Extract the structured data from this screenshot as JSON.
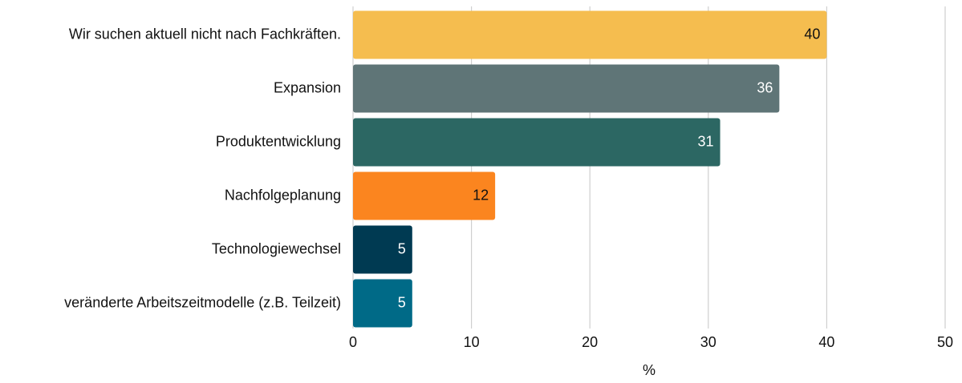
{
  "chart_data": {
    "type": "barh",
    "categories": [
      "Wir suchen aktuell nicht nach Fachkräften.",
      "Expansion",
      "Produktentwicklung",
      "Nachfolgeplanung",
      "Technologiewechsel",
      "veränderte Arbeitszeitmodelle (z.B. Teilzeit)"
    ],
    "values": [
      40,
      36,
      31,
      12,
      5,
      5
    ],
    "colors": [
      "#f5bd4f",
      "#5f7577",
      "#2c6763",
      "#fb851f",
      "#003a52",
      "#006a87"
    ],
    "xlabel": "%",
    "xlim": [
      0,
      50
    ],
    "xticks": [
      0,
      10,
      20,
      30,
      40,
      50
    ],
    "grid": true
  }
}
